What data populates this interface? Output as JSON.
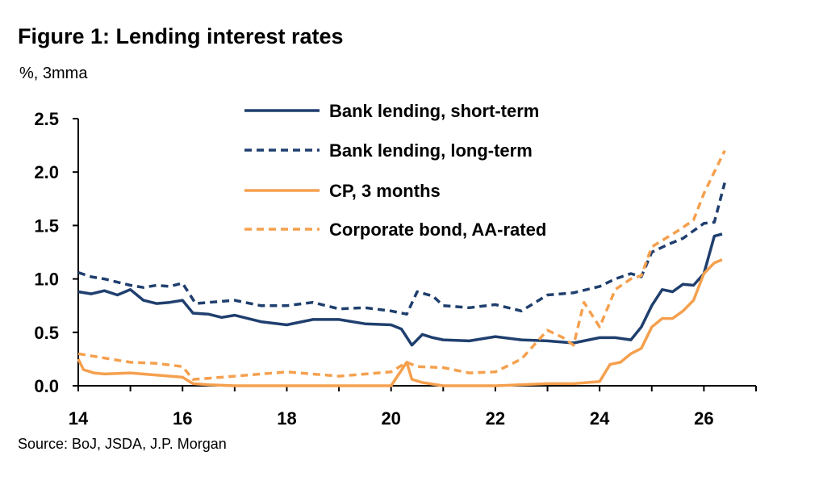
{
  "title": "Figure 1: Lending interest rates",
  "subtitle": "%, 3mma",
  "source": "Source: BoJ, JSDA, J.P. Morgan",
  "chart_data": {
    "type": "line",
    "xlim": [
      14,
      27
    ],
    "ylim": [
      0,
      2.5
    ],
    "x_ticks": [
      14,
      16,
      18,
      20,
      22,
      24,
      26
    ],
    "x_tick_labels": [
      "14",
      "16",
      "18",
      "20",
      "22",
      "24",
      "26"
    ],
    "y_ticks": [
      0,
      0.5,
      1,
      1.5,
      2,
      2.5
    ],
    "y_tick_labels": [
      "0.0",
      "0.5",
      "1.0",
      "1.5",
      "2.0",
      "2.5"
    ],
    "grid": false,
    "legend_position": "top-center",
    "series": [
      {
        "name": "Bank lending, short-term",
        "color": "#1F3F6E",
        "dash": "solid",
        "x": [
          14.0,
          14.25,
          14.5,
          14.75,
          15.0,
          15.25,
          15.5,
          15.75,
          16.0,
          16.2,
          16.5,
          16.75,
          17.0,
          17.5,
          18.0,
          18.5,
          19.0,
          19.5,
          20.0,
          20.2,
          20.4,
          20.6,
          20.8,
          21.0,
          21.5,
          22.0,
          22.5,
          23.0,
          23.5,
          24.0,
          24.3,
          24.6,
          24.8,
          25.0,
          25.2,
          25.4,
          25.6,
          25.8,
          26.0,
          26.2,
          26.35
        ],
        "y": [
          0.88,
          0.86,
          0.89,
          0.85,
          0.9,
          0.8,
          0.77,
          0.78,
          0.8,
          0.68,
          0.67,
          0.64,
          0.66,
          0.6,
          0.57,
          0.62,
          0.62,
          0.58,
          0.57,
          0.53,
          0.38,
          0.48,
          0.45,
          0.43,
          0.42,
          0.46,
          0.43,
          0.42,
          0.4,
          0.45,
          0.45,
          0.43,
          0.55,
          0.75,
          0.9,
          0.88,
          0.95,
          0.94,
          1.05,
          1.4,
          1.42
        ]
      },
      {
        "name": "Bank lending, long-term",
        "color": "#1F3F6E",
        "dash": "dashed",
        "x": [
          14.0,
          14.25,
          14.5,
          14.75,
          15.0,
          15.25,
          15.5,
          15.75,
          16.0,
          16.25,
          16.5,
          17.0,
          17.5,
          18.0,
          18.5,
          19.0,
          19.5,
          20.0,
          20.3,
          20.5,
          20.8,
          21.0,
          21.5,
          22.0,
          22.5,
          23.0,
          23.5,
          24.0,
          24.3,
          24.6,
          24.8,
          25.0,
          25.3,
          25.6,
          25.8,
          26.0,
          26.2,
          26.4
        ],
        "y": [
          1.06,
          1.02,
          1.0,
          0.97,
          0.94,
          0.92,
          0.94,
          0.93,
          0.96,
          0.77,
          0.78,
          0.8,
          0.75,
          0.75,
          0.78,
          0.72,
          0.73,
          0.7,
          0.67,
          0.88,
          0.84,
          0.75,
          0.73,
          0.76,
          0.7,
          0.85,
          0.87,
          0.93,
          1.0,
          1.05,
          1.02,
          1.25,
          1.32,
          1.38,
          1.45,
          1.52,
          1.53,
          1.9
        ]
      },
      {
        "name": "CP, 3 months",
        "color": "#F5A04E",
        "dash": "solid",
        "x": [
          14.0,
          14.1,
          14.3,
          14.5,
          15.0,
          15.5,
          16.0,
          16.2,
          16.5,
          17.0,
          18.0,
          19.0,
          20.0,
          20.3,
          20.4,
          20.6,
          21.0,
          22.0,
          23.0,
          23.5,
          24.0,
          24.2,
          24.4,
          24.6,
          24.8,
          25.0,
          25.2,
          25.4,
          25.6,
          25.8,
          26.0,
          26.2,
          26.35
        ],
        "y": [
          0.25,
          0.15,
          0.12,
          0.11,
          0.12,
          0.1,
          0.08,
          0.02,
          0.01,
          0.0,
          0.0,
          0.0,
          0.0,
          0.22,
          0.06,
          0.03,
          0.0,
          0.0,
          0.02,
          0.02,
          0.04,
          0.2,
          0.22,
          0.3,
          0.35,
          0.55,
          0.63,
          0.63,
          0.7,
          0.8,
          1.05,
          1.15,
          1.18
        ]
      },
      {
        "name": "Corporate bond, AA-rated",
        "color": "#F5A04E",
        "dash": "dashed",
        "x": [
          14.0,
          14.5,
          15.0,
          15.5,
          16.0,
          16.2,
          16.5,
          17.0,
          18.0,
          19.0,
          20.0,
          20.3,
          20.5,
          21.0,
          21.5,
          22.0,
          22.5,
          23.0,
          23.3,
          23.5,
          23.7,
          24.0,
          24.3,
          24.6,
          24.8,
          25.0,
          25.2,
          25.5,
          25.8,
          26.0,
          26.2,
          26.4
        ],
        "y": [
          0.3,
          0.26,
          0.22,
          0.21,
          0.18,
          0.06,
          0.07,
          0.09,
          0.13,
          0.09,
          0.13,
          0.22,
          0.18,
          0.17,
          0.12,
          0.13,
          0.25,
          0.52,
          0.45,
          0.38,
          0.78,
          0.55,
          0.9,
          1.0,
          1.03,
          1.3,
          1.36,
          1.45,
          1.55,
          1.8,
          2.0,
          2.2
        ]
      }
    ]
  }
}
